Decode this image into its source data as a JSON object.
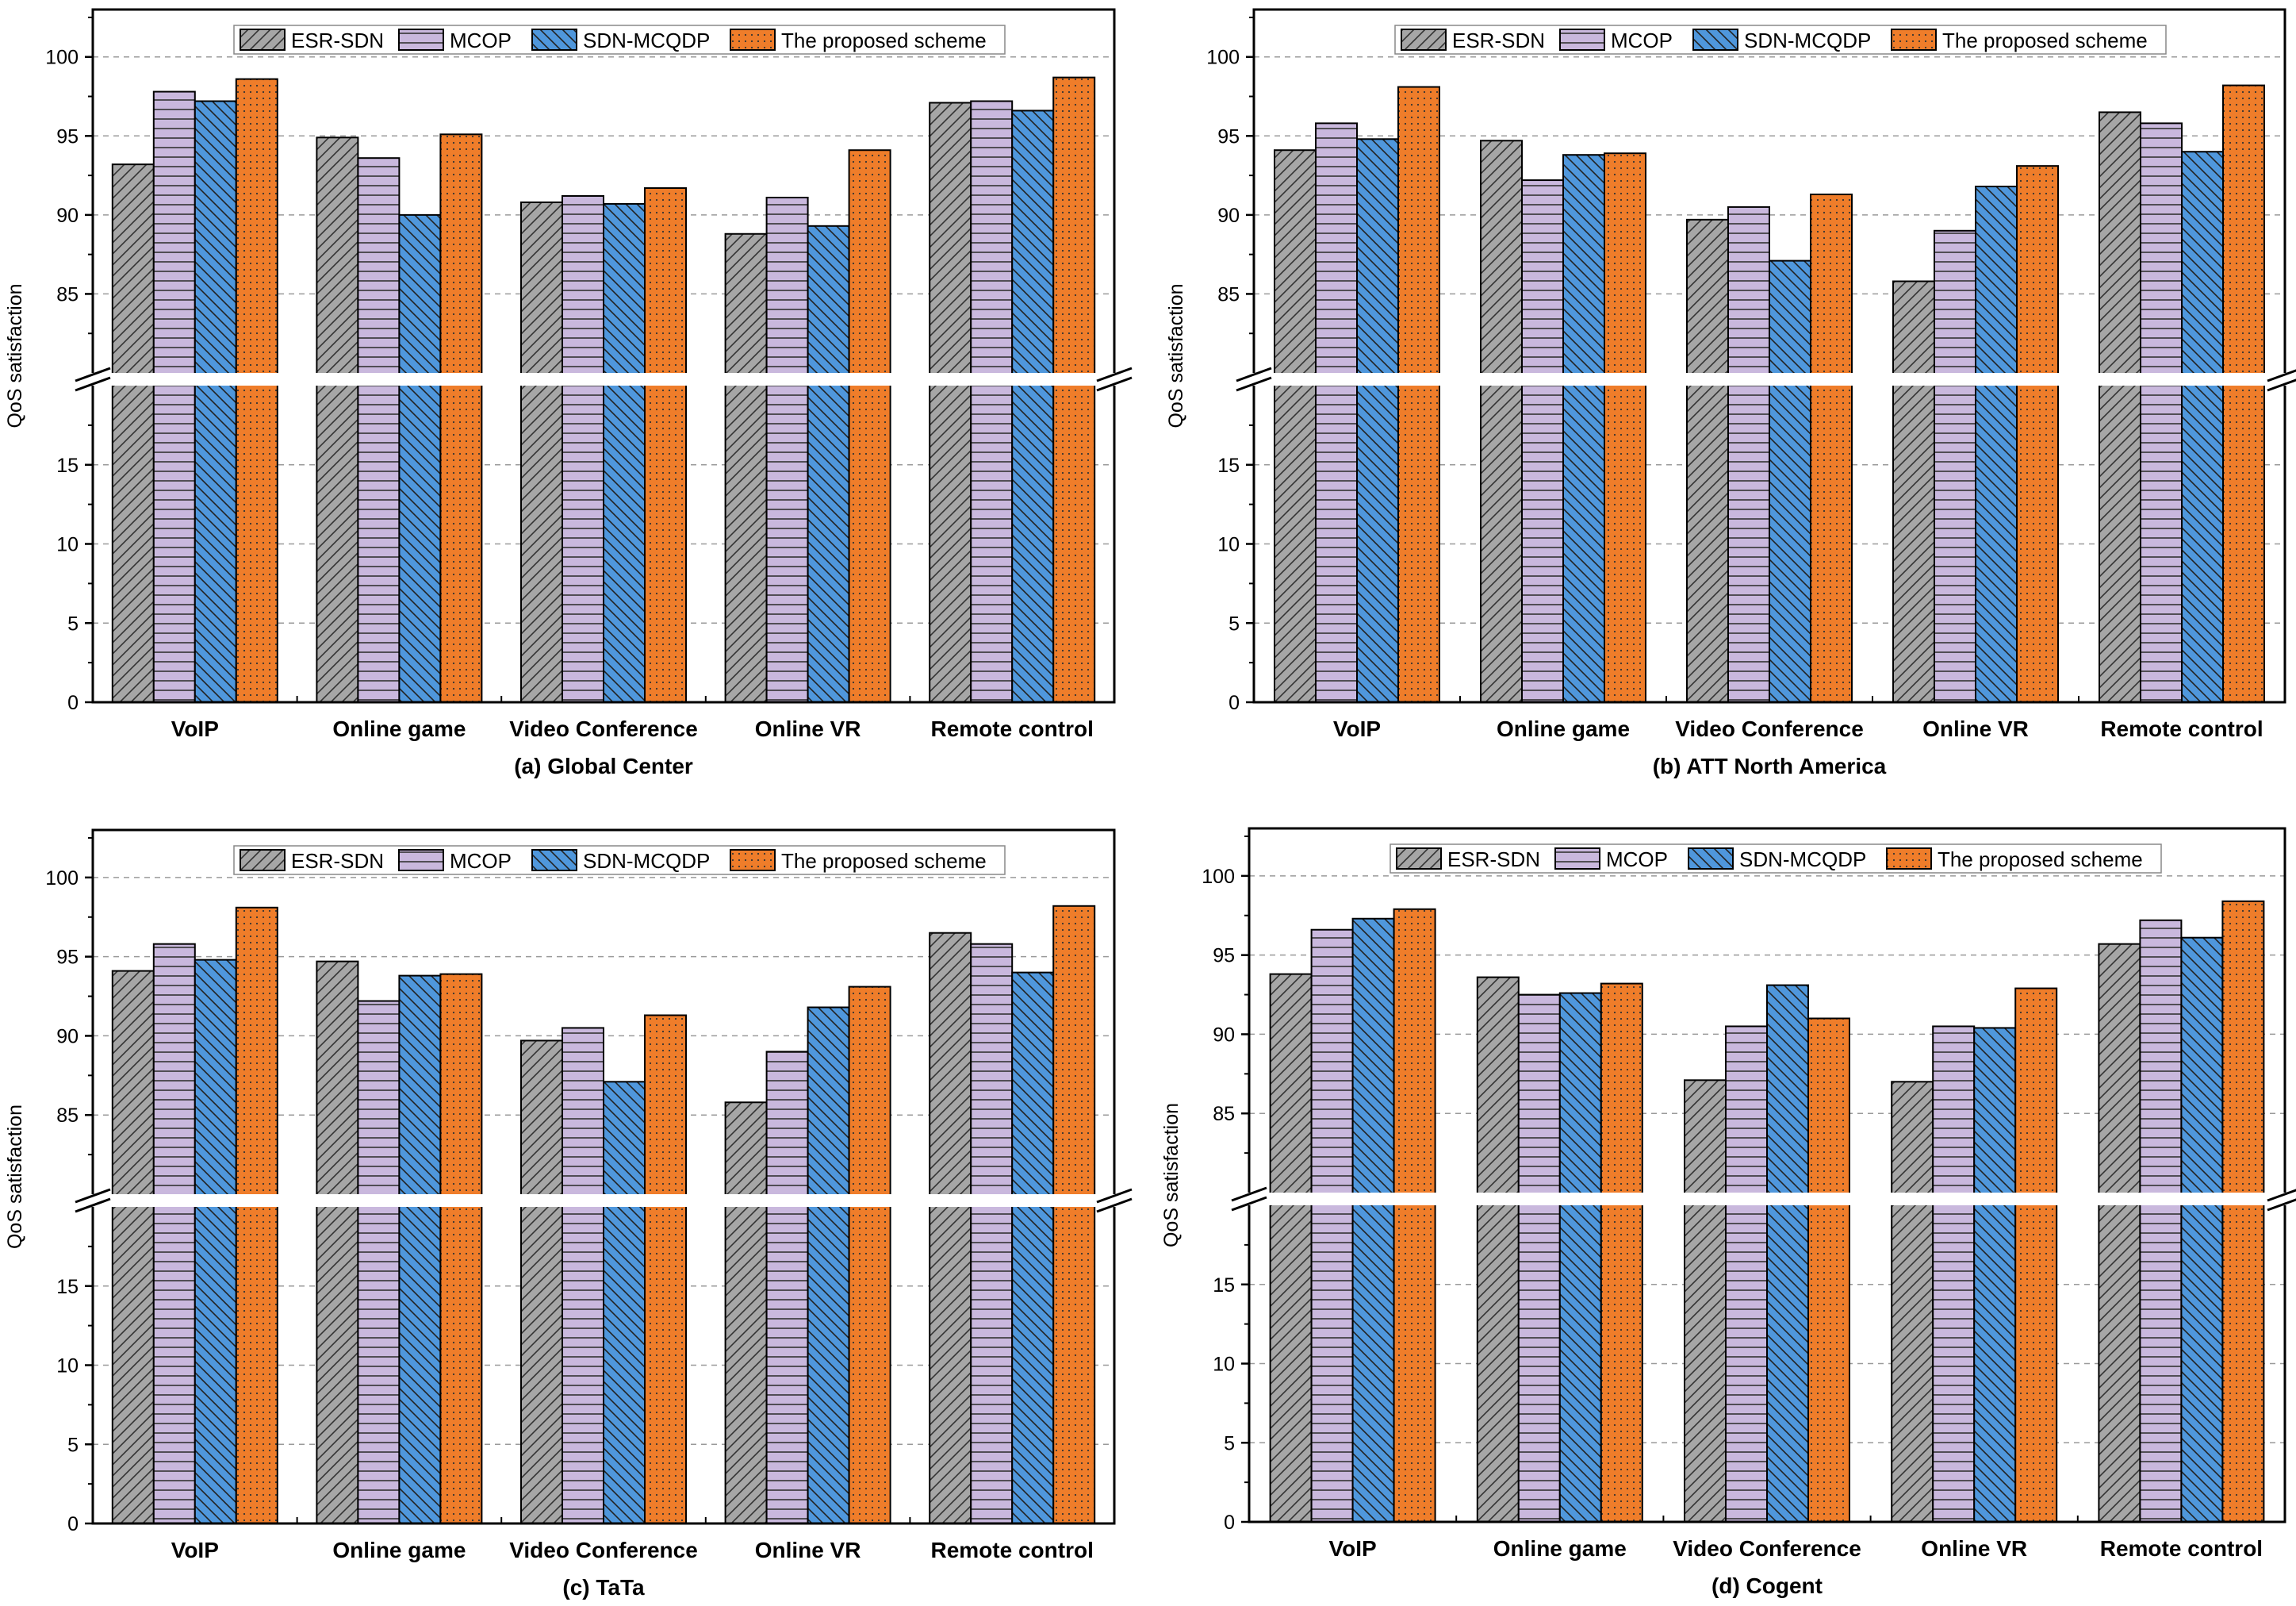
{
  "colors": {
    "ESR-SDN": "#a6a6a6",
    "MCOP": "#c9b8dd",
    "SDN-MCQDP": "#4f97dc",
    "The proposed scheme": "#ef7d2a"
  },
  "chart_data": [
    {
      "type": "bar",
      "caption": "(a) Global Center",
      "ylabel": "QoS satisfaction",
      "categories": [
        "VoIP",
        "Online game",
        "Video Conference",
        "Online VR",
        "Remote control"
      ],
      "series": [
        {
          "name": "ESR-SDN",
          "values": [
            93.2,
            94.9,
            90.8,
            88.8,
            97.1
          ]
        },
        {
          "name": "MCOP",
          "values": [
            97.8,
            93.6,
            91.2,
            91.1,
            97.2
          ]
        },
        {
          "name": "SDN-MCQDP",
          "values": [
            97.2,
            90.0,
            90.7,
            89.3,
            96.6
          ]
        },
        {
          "name": "The proposed scheme",
          "values": [
            98.6,
            95.1,
            91.7,
            94.1,
            98.7
          ]
        }
      ],
      "y_break": {
        "lower_range": [
          0,
          20
        ],
        "upper_range": [
          80,
          103
        ]
      },
      "lower_ticks": [
        "0",
        "5",
        "10",
        "15"
      ],
      "upper_ticks": [
        "85",
        "90",
        "95",
        "100"
      ],
      "legend": "top"
    },
    {
      "type": "bar",
      "caption": "(b) ATT North America",
      "ylabel": "QoS satisfaction",
      "categories": [
        "VoIP",
        "Online game",
        "Video Conference",
        "Online VR",
        "Remote control"
      ],
      "series": [
        {
          "name": "ESR-SDN",
          "values": [
            94.1,
            94.7,
            89.7,
            85.8,
            96.5
          ]
        },
        {
          "name": "MCOP",
          "values": [
            95.8,
            92.2,
            90.5,
            89.0,
            95.8
          ]
        },
        {
          "name": "SDN-MCQDP",
          "values": [
            94.8,
            93.8,
            87.1,
            91.8,
            94.0
          ]
        },
        {
          "name": "The proposed scheme",
          "values": [
            98.1,
            93.9,
            91.3,
            93.1,
            98.2
          ]
        }
      ],
      "y_break": {
        "lower_range": [
          0,
          20
        ],
        "upper_range": [
          80,
          103
        ]
      },
      "lower_ticks": [
        "0",
        "5",
        "10",
        "15"
      ],
      "upper_ticks": [
        "85",
        "90",
        "95",
        "100"
      ],
      "legend": "top"
    },
    {
      "type": "bar",
      "caption": "(c) TaTa",
      "ylabel": "QoS satisfaction",
      "categories": [
        "VoIP",
        "Online game",
        "Video Conference",
        "Online VR",
        "Remote control"
      ],
      "series": [
        {
          "name": "ESR-SDN",
          "values": [
            94.1,
            94.7,
            89.7,
            85.8,
            96.5
          ]
        },
        {
          "name": "MCOP",
          "values": [
            95.8,
            92.2,
            90.5,
            89.0,
            95.8
          ]
        },
        {
          "name": "SDN-MCQDP",
          "values": [
            94.8,
            93.8,
            87.1,
            91.8,
            94.0
          ]
        },
        {
          "name": "The proposed scheme",
          "values": [
            98.1,
            93.9,
            91.3,
            93.1,
            98.2
          ]
        }
      ],
      "y_break": {
        "lower_range": [
          0,
          20
        ],
        "upper_range": [
          80,
          103
        ]
      },
      "lower_ticks": [
        "0",
        "5",
        "10",
        "15"
      ],
      "upper_ticks": [
        "85",
        "90",
        "95",
        "100"
      ],
      "legend": "top"
    },
    {
      "type": "bar",
      "caption": "(d) Cogent",
      "ylabel": "QoS satisfaction",
      "categories": [
        "VoIP",
        "Online game",
        "Video Conference",
        "Online VR",
        "Remote control"
      ],
      "series": [
        {
          "name": "ESR-SDN",
          "values": [
            93.8,
            93.6,
            87.1,
            87.0,
            95.7
          ]
        },
        {
          "name": "MCOP",
          "values": [
            96.6,
            92.5,
            90.5,
            90.5,
            97.2
          ]
        },
        {
          "name": "SDN-MCQDP",
          "values": [
            97.3,
            92.6,
            93.1,
            90.4,
            96.1
          ]
        },
        {
          "name": "The proposed scheme",
          "values": [
            97.9,
            93.2,
            91.0,
            92.9,
            98.4
          ]
        }
      ],
      "y_break": {
        "lower_range": [
          0,
          20
        ],
        "upper_range": [
          80,
          103
        ]
      },
      "lower_ticks": [
        "0",
        "5",
        "10",
        "15"
      ],
      "upper_ticks": [
        "85",
        "90",
        "95",
        "100"
      ],
      "legend": "top"
    }
  ]
}
